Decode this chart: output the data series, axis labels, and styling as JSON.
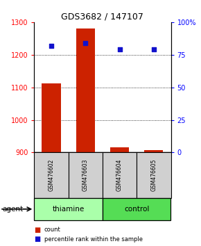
{
  "title": "GDS3682 / 147107",
  "samples": [
    "GSM476602",
    "GSM476603",
    "GSM476604",
    "GSM476605"
  ],
  "counts": [
    1113,
    1280,
    917,
    908
  ],
  "percentiles": [
    82,
    84,
    79,
    79
  ],
  "ylim_left": [
    900,
    1300
  ],
  "ylim_right": [
    0,
    100
  ],
  "yticks_left": [
    900,
    1000,
    1100,
    1200,
    1300
  ],
  "yticks_right": [
    0,
    25,
    50,
    75,
    100
  ],
  "ytick_labels_right": [
    "0",
    "25",
    "50",
    "75",
    "100%"
  ],
  "bar_color": "#cc2200",
  "dot_color": "#1111cc",
  "bar_width": 0.55,
  "legend_count_label": "count",
  "legend_pct_label": "percentile rank within the sample",
  "agent_label": "agent",
  "gray_color": "#d0d0d0",
  "thiamine_color": "#aaffaa",
  "control_color": "#55dd55",
  "grid_color": "#000000",
  "group_spans": {
    "thiamine": [
      0,
      1
    ],
    "control": [
      2,
      3
    ]
  }
}
